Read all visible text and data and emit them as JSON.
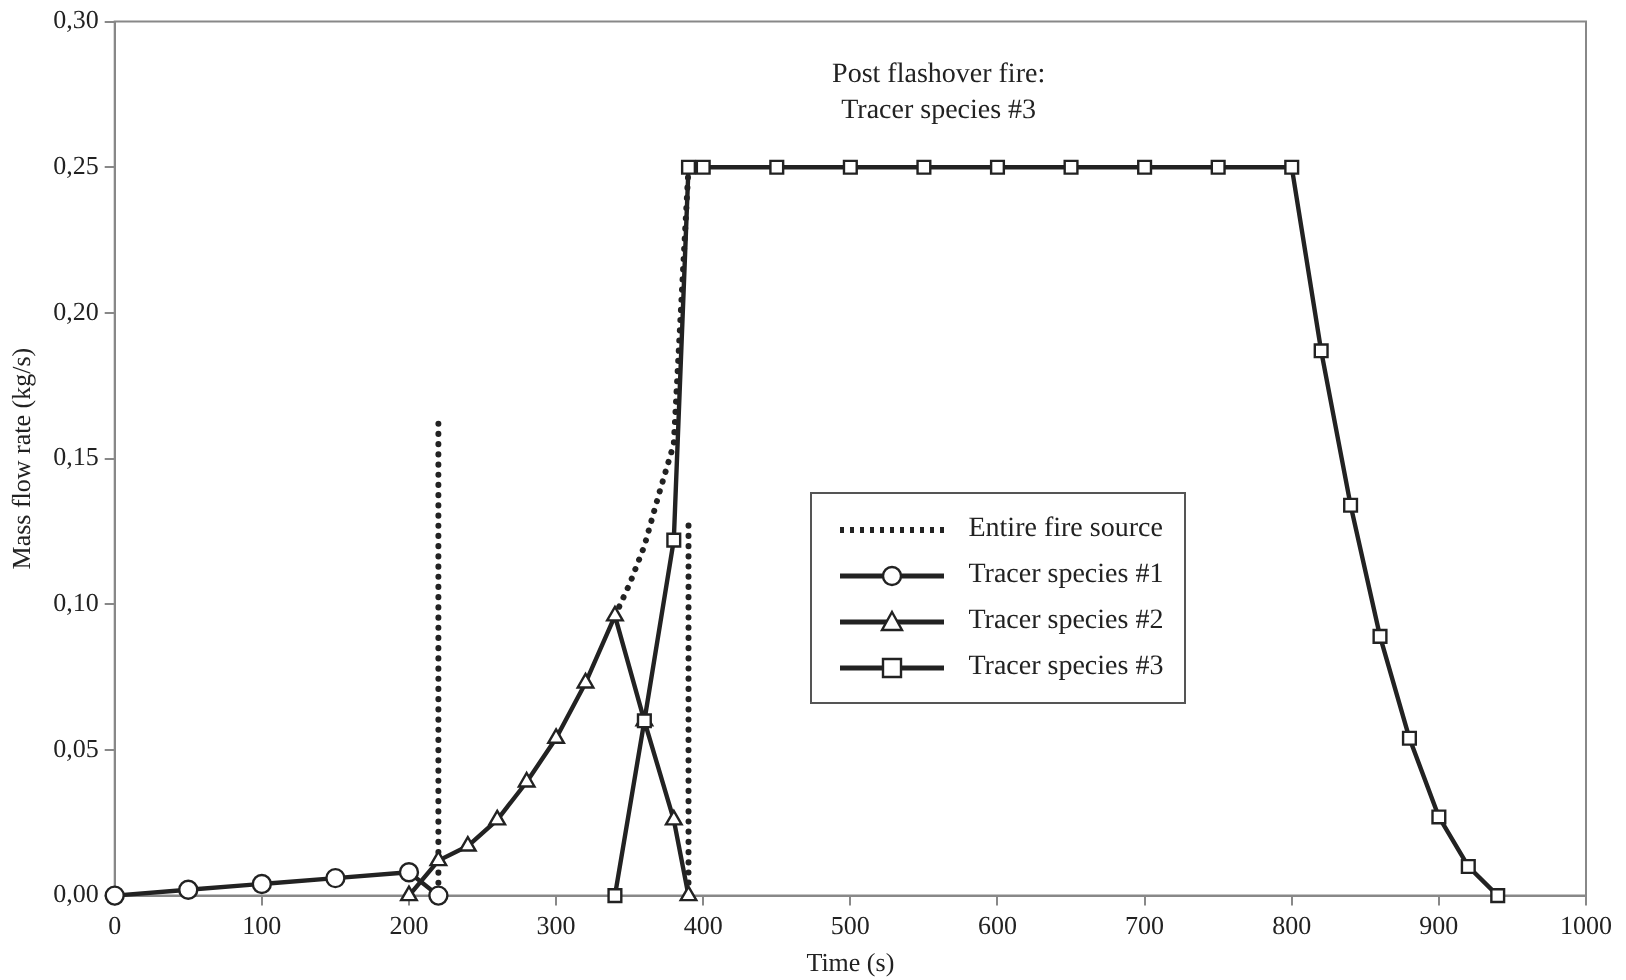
{
  "chart_data": {
    "type": "line",
    "xlabel": "Time (s)",
    "ylabel": "Mass flow rate (kg/s)",
    "xlim": [
      0,
      1000
    ],
    "xticks": [
      0,
      100,
      200,
      300,
      400,
      500,
      600,
      700,
      800,
      900,
      1000
    ],
    "ylim": [
      0,
      0.3
    ],
    "yticks": [
      {
        "value": 0,
        "label": "0,00"
      },
      {
        "value": 0.05,
        "label": "0,05"
      },
      {
        "value": 0.1,
        "label": "0,10"
      },
      {
        "value": 0.15,
        "label": "0,15"
      },
      {
        "value": 0.2,
        "label": "0,20"
      },
      {
        "value": 0.25,
        "label": "0,25"
      },
      {
        "value": 0.3,
        "label": "0,30"
      }
    ],
    "grid": false,
    "legend": "center",
    "annotations": [
      "Post flashover fire:\nTracer species #3"
    ],
    "series": [
      {
        "name": "Entire fire source",
        "color": "#222222",
        "line_style": "dotted",
        "marker": "none",
        "x": [
          340,
          350,
          360,
          370,
          380,
          390
        ],
        "values": [
          0.096,
          0.107,
          0.12,
          0.138,
          0.155,
          0.25
        ]
      },
      {
        "name": "Tracer species #1",
        "color": "#222222",
        "line_style": "solid",
        "marker": "circle",
        "x": [
          0,
          50,
          100,
          150,
          200,
          220
        ],
        "values": [
          0,
          0.002,
          0.004,
          0.006,
          0.008,
          0
        ]
      },
      {
        "name": "Tracer species #2",
        "color": "#222222",
        "line_style": "solid",
        "marker": "triangle",
        "x": [
          200,
          220,
          240,
          260,
          280,
          300,
          320,
          340,
          360,
          380,
          390
        ],
        "values": [
          0,
          0.012,
          0.017,
          0.026,
          0.039,
          0.054,
          0.073,
          0.096,
          0.06,
          0.026,
          0
        ]
      },
      {
        "name": "Tracer species #3",
        "color": "#222222",
        "line_style": "solid",
        "marker": "square",
        "x": [
          340,
          360,
          380,
          390,
          400,
          450,
          500,
          550,
          600,
          650,
          700,
          750,
          800,
          820,
          840,
          860,
          880,
          900,
          920,
          940
        ],
        "values": [
          0,
          0.06,
          0.122,
          0.25,
          0.25,
          0.25,
          0.25,
          0.25,
          0.25,
          0.25,
          0.25,
          0.25,
          0.25,
          0.187,
          0.134,
          0.089,
          0.054,
          0.027,
          0.01,
          0
        ]
      },
      {
        "color": "#222222",
        "line_style": "dotted",
        "marker": "none",
        "x": [
          220,
          220
        ],
        "values": [
          0.162,
          0
        ]
      },
      {
        "color": "#222222",
        "line_style": "dotted",
        "marker": "none",
        "x": [
          390,
          390
        ],
        "values": [
          0.127,
          0
        ]
      }
    ]
  }
}
